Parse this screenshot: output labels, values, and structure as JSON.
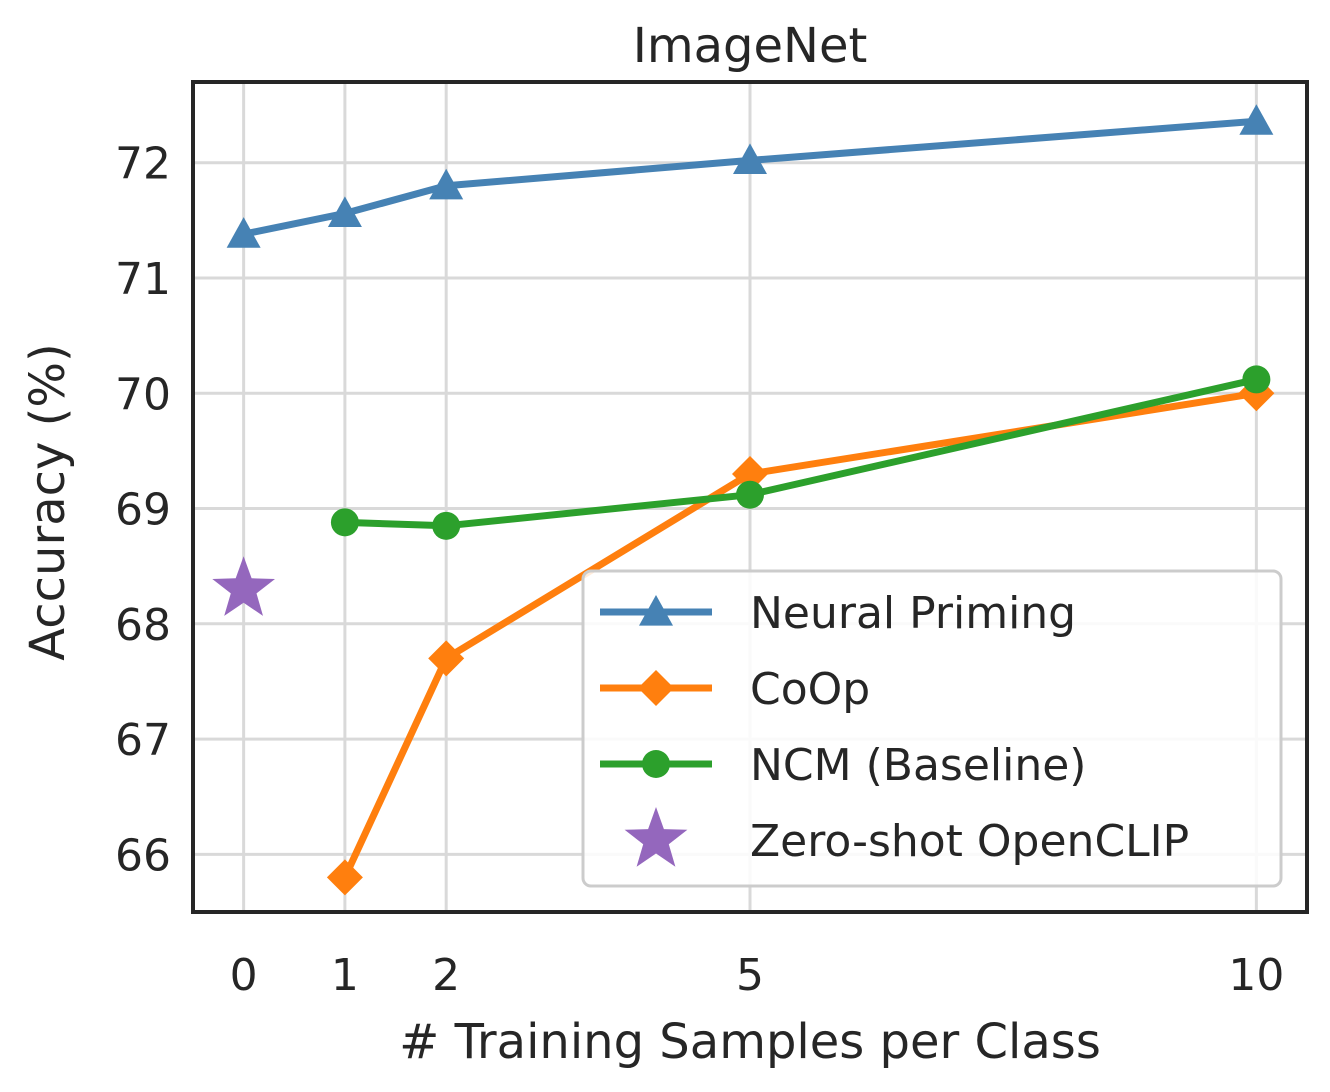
{
  "chart_data": {
    "type": "line",
    "title": "ImageNet",
    "xlabel": "# Training Samples per Class",
    "ylabel": "Accuracy (%)",
    "x_ticks": [
      0,
      1,
      2,
      5,
      10
    ],
    "y_ticks": [
      66,
      67,
      68,
      69,
      70,
      71,
      72
    ],
    "xlim": [
      -0.5,
      10.5
    ],
    "ylim": [
      65.5,
      72.7
    ],
    "grid": true,
    "legend_position": "lower-right",
    "series": [
      {
        "name": "Neural Priming",
        "color": "#4682b4",
        "marker": "triangle",
        "x": [
          0,
          1,
          2,
          5,
          10
        ],
        "values": [
          71.38,
          71.56,
          71.8,
          72.02,
          72.36
        ]
      },
      {
        "name": "CoOp",
        "color": "#ff7f0e",
        "marker": "diamond",
        "x": [
          1,
          2,
          5,
          10
        ],
        "values": [
          65.8,
          67.7,
          69.3,
          70.0
        ]
      },
      {
        "name": "NCM (Baseline)",
        "color": "#2ca02c",
        "marker": "circle",
        "x": [
          1,
          2,
          5,
          10
        ],
        "values": [
          68.88,
          68.85,
          69.12,
          70.12
        ]
      },
      {
        "name": "Zero-shot OpenCLIP",
        "color": "#9467bd",
        "marker": "star",
        "x": [
          0
        ],
        "values": [
          68.3
        ]
      }
    ]
  }
}
